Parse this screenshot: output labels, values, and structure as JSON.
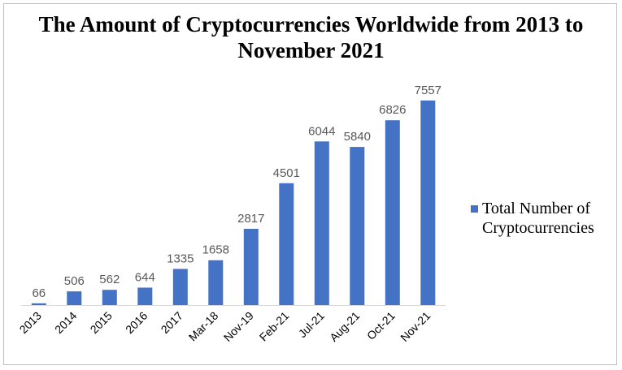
{
  "colors": {
    "bar": "#4472c4",
    "value_label": "#595959",
    "axis": "#d9d9d9"
  },
  "chart_data": {
    "type": "bar",
    "title": "The Amount of Cryptocurrencies Worldwide from 2013 to November 2021",
    "categories": [
      "2013",
      "2014",
      "2015",
      "2016",
      "2017",
      "Mar-18",
      "Nov-19",
      "Feb-21",
      "Jul-21",
      "Aug-21",
      "Oct-21",
      "Nov-21"
    ],
    "series": [
      {
        "name": "Total Number of Cryptocurrencies",
        "values": [
          66,
          506,
          562,
          644,
          1335,
          1658,
          2817,
          4501,
          6044,
          5840,
          6826,
          7557
        ]
      }
    ],
    "xlabel": "",
    "ylabel": "",
    "ylim": [
      0,
      8000
    ],
    "data_labels": true,
    "grid": false,
    "legend_position": "right"
  }
}
